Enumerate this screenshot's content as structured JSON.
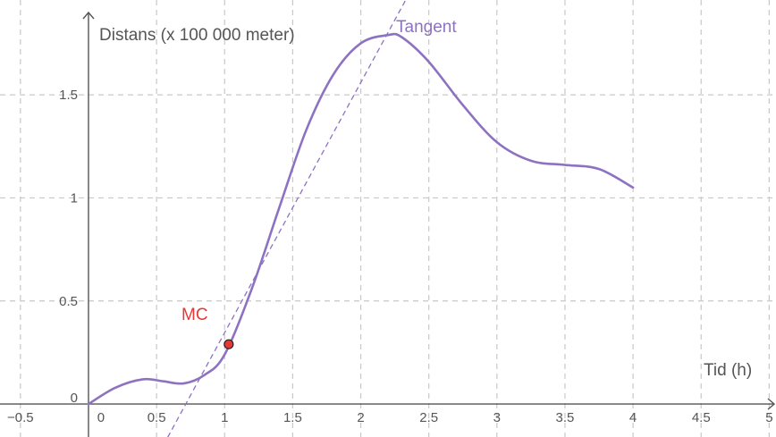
{
  "chart_data": {
    "type": "line",
    "xlabel": "Tid (h)",
    "ylabel": "Distans (x 100 000 meter)",
    "xlim": [
      -0.65,
      5.05
    ],
    "ylim": [
      -0.16,
      1.96
    ],
    "grid": true,
    "x_ticks": [
      {
        "value": -0.5,
        "label": "−0.5"
      },
      {
        "value": 0,
        "label": "0"
      },
      {
        "value": 0.5,
        "label": "0.5"
      },
      {
        "value": 1,
        "label": "1"
      },
      {
        "value": 1.5,
        "label": "1.5"
      },
      {
        "value": 2,
        "label": "2"
      },
      {
        "value": 2.5,
        "label": "2.5"
      },
      {
        "value": 3,
        "label": "3"
      },
      {
        "value": 3.5,
        "label": "3.5"
      },
      {
        "value": 4,
        "label": "4"
      },
      {
        "value": 4.5,
        "label": "4.5"
      },
      {
        "value": 5,
        "label": "5"
      }
    ],
    "y_ticks": [
      {
        "value": 0,
        "label": "0"
      },
      {
        "value": 0.5,
        "label": "0.5"
      },
      {
        "value": 1,
        "label": "1"
      },
      {
        "value": 1.5,
        "label": "1.5"
      }
    ],
    "series": [
      {
        "color": "#8e72c2",
        "x": [
          0,
          0.2,
          0.4,
          0.55,
          0.7,
          0.85,
          1.0,
          1.2,
          1.4,
          1.6,
          1.8,
          2.0,
          2.2,
          2.3,
          2.5,
          2.75,
          3.0,
          3.25,
          3.5,
          3.75,
          4.0
        ],
        "y": [
          0,
          0.08,
          0.12,
          0.11,
          0.1,
          0.14,
          0.24,
          0.56,
          0.95,
          1.33,
          1.6,
          1.75,
          1.79,
          1.78,
          1.66,
          1.45,
          1.27,
          1.18,
          1.16,
          1.14,
          1.05
        ]
      }
    ],
    "tangent": {
      "label": "Tangent",
      "color": "#8e72c2",
      "x": [
        0.55,
        2.33
      ],
      "y": [
        -0.2,
        1.96
      ]
    },
    "point": {
      "label": "MC",
      "label_color": "#e53935",
      "fill": "#e53935",
      "x": 1.03,
      "y": 0.29
    }
  }
}
